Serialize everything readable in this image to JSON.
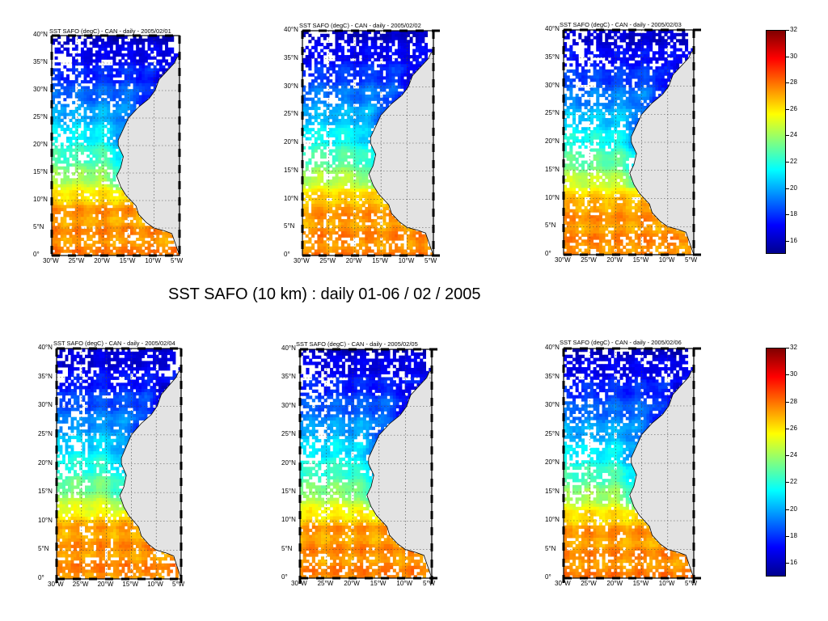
{
  "main_title": "SST SAFO (10 km) :  daily  01-06 / 02 / 2005",
  "lat_labels": [
    "40°N",
    "35°N",
    "30°N",
    "25°N",
    "20°N",
    "15°N",
    "10°N",
    "5°N",
    "0°"
  ],
  "lon_labels": [
    "30°W",
    "25°W",
    "20°W",
    "15°W",
    "10°W",
    "5°W"
  ],
  "colorbar_ticks": [
    "32",
    "30",
    "28",
    "26",
    "24",
    "22",
    "20",
    "18",
    "16"
  ],
  "colors": {
    "land": "#e3e3e3",
    "grid": "#444444",
    "colormap": [
      "#00008f",
      "#0000ff",
      "#0080ff",
      "#00ffff",
      "#80ff80",
      "#ffff00",
      "#ff8000",
      "#ff0000",
      "#800000"
    ]
  },
  "panels": [
    {
      "title": "SST SAFO  (degC) - CAN - daily - 2005/02/01"
    },
    {
      "title": "SST SAFO  (degC) - CAN - daily - 2005/02/02"
    },
    {
      "title": "SST SAFO  (degC) - CAN - daily - 2005/02/03"
    },
    {
      "title": "SST SAFO  (degC) - CAN - daily - 2005/02/04"
    },
    {
      "title": "SST SAFO  (degC) - CAN - daily - 2005/02/05"
    },
    {
      "title": "SST SAFO  (degC) - CAN - daily - 2005/02/06"
    }
  ],
  "chart_data": {
    "type": "heatmap",
    "title": "SST SAFO (10 km) :  daily  01-06 / 02 / 2005",
    "variable": "SST SAFO",
    "units": "degC",
    "region": "CAN",
    "dates": [
      "2005/02/01",
      "2005/02/02",
      "2005/02/03",
      "2005/02/04",
      "2005/02/05",
      "2005/02/06"
    ],
    "lon_range": [
      -30,
      -5
    ],
    "lat_range": [
      0,
      40
    ],
    "colorbar_range": [
      15,
      32
    ],
    "colorbar_ticks": [
      16,
      18,
      20,
      22,
      24,
      26,
      28,
      30,
      32
    ],
    "grid": true
  }
}
